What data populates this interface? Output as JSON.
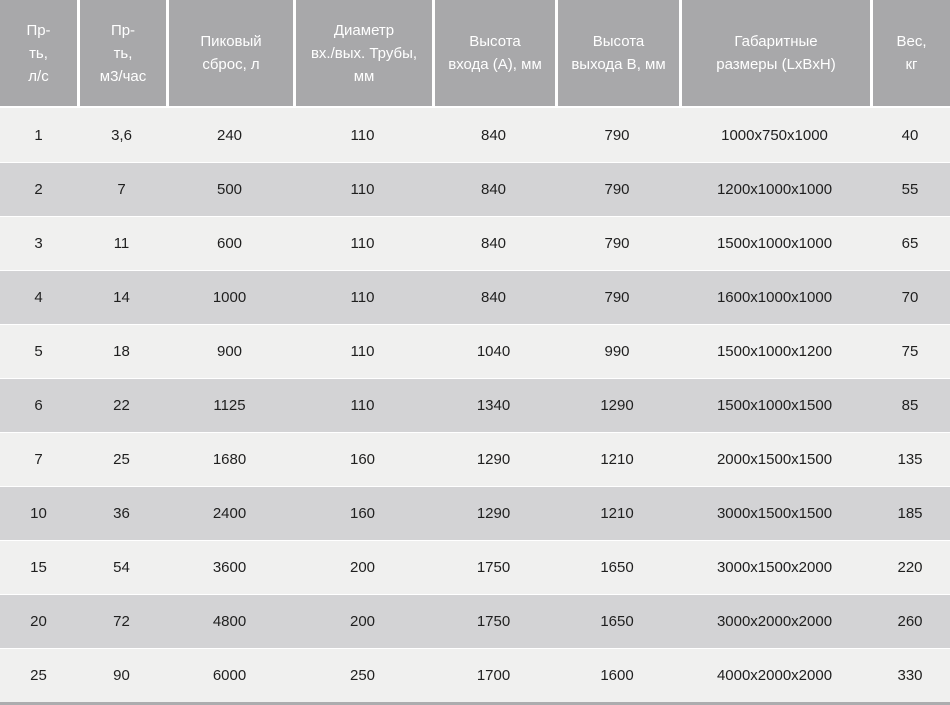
{
  "chart_data": {
    "type": "table",
    "columns": [
      "Пр-\nть,\nл/с",
      "Пр-\nть,\nм3/час",
      "Пиковый\nсброс, л",
      "Диаметр\nвх./вых. Трубы,\nмм",
      "Высота\nвхода (А), мм",
      "Высота\nвыхода В, мм",
      "Габаритные\nразмеры (LxBxH)",
      "Вес,\nкг"
    ],
    "rows": [
      [
        "1",
        "3,6",
        "240",
        "110",
        "840",
        "790",
        "1000x750x1000",
        "40"
      ],
      [
        "2",
        "7",
        "500",
        "110",
        "840",
        "790",
        "1200x1000x1000",
        "55"
      ],
      [
        "3",
        "11",
        "600",
        "110",
        "840",
        "790",
        "1500x1000x1000",
        "65"
      ],
      [
        "4",
        "14",
        "1000",
        "110",
        "840",
        "790",
        "1600x1000x1000",
        "70"
      ],
      [
        "5",
        "18",
        "900",
        "110",
        "1040",
        "990",
        "1500x1000x1200",
        "75"
      ],
      [
        "6",
        "22",
        "1125",
        "110",
        "1340",
        "1290",
        "1500x1000x1500",
        "85"
      ],
      [
        "7",
        "25",
        "1680",
        "160",
        "1290",
        "1210",
        "2000x1500x1500",
        "135"
      ],
      [
        "10",
        "36",
        "2400",
        "160",
        "1290",
        "1210",
        "3000x1500x1500",
        "185"
      ],
      [
        "15",
        "54",
        "3600",
        "200",
        "1750",
        "1650",
        "3000x1500x2000",
        "220"
      ],
      [
        "20",
        "72",
        "4800",
        "200",
        "1750",
        "1650",
        "3000x2000x2000",
        "260"
      ],
      [
        "25",
        "90",
        "6000",
        "250",
        "1700",
        "1600",
        "4000x2000x2000",
        "330"
      ]
    ],
    "title": "",
    "layout_hints": {
      "striped_rows": true,
      "header_position": "top",
      "alignment": "center"
    }
  },
  "colors": {
    "header_bg": "#a8a8aa",
    "header_text": "#ffffff",
    "row_light": "#f0f0ef",
    "row_dark": "#d3d3d5",
    "separator": "#ffffff",
    "cell_text": "#1f1f1f",
    "footer_strip": "#acacae"
  }
}
